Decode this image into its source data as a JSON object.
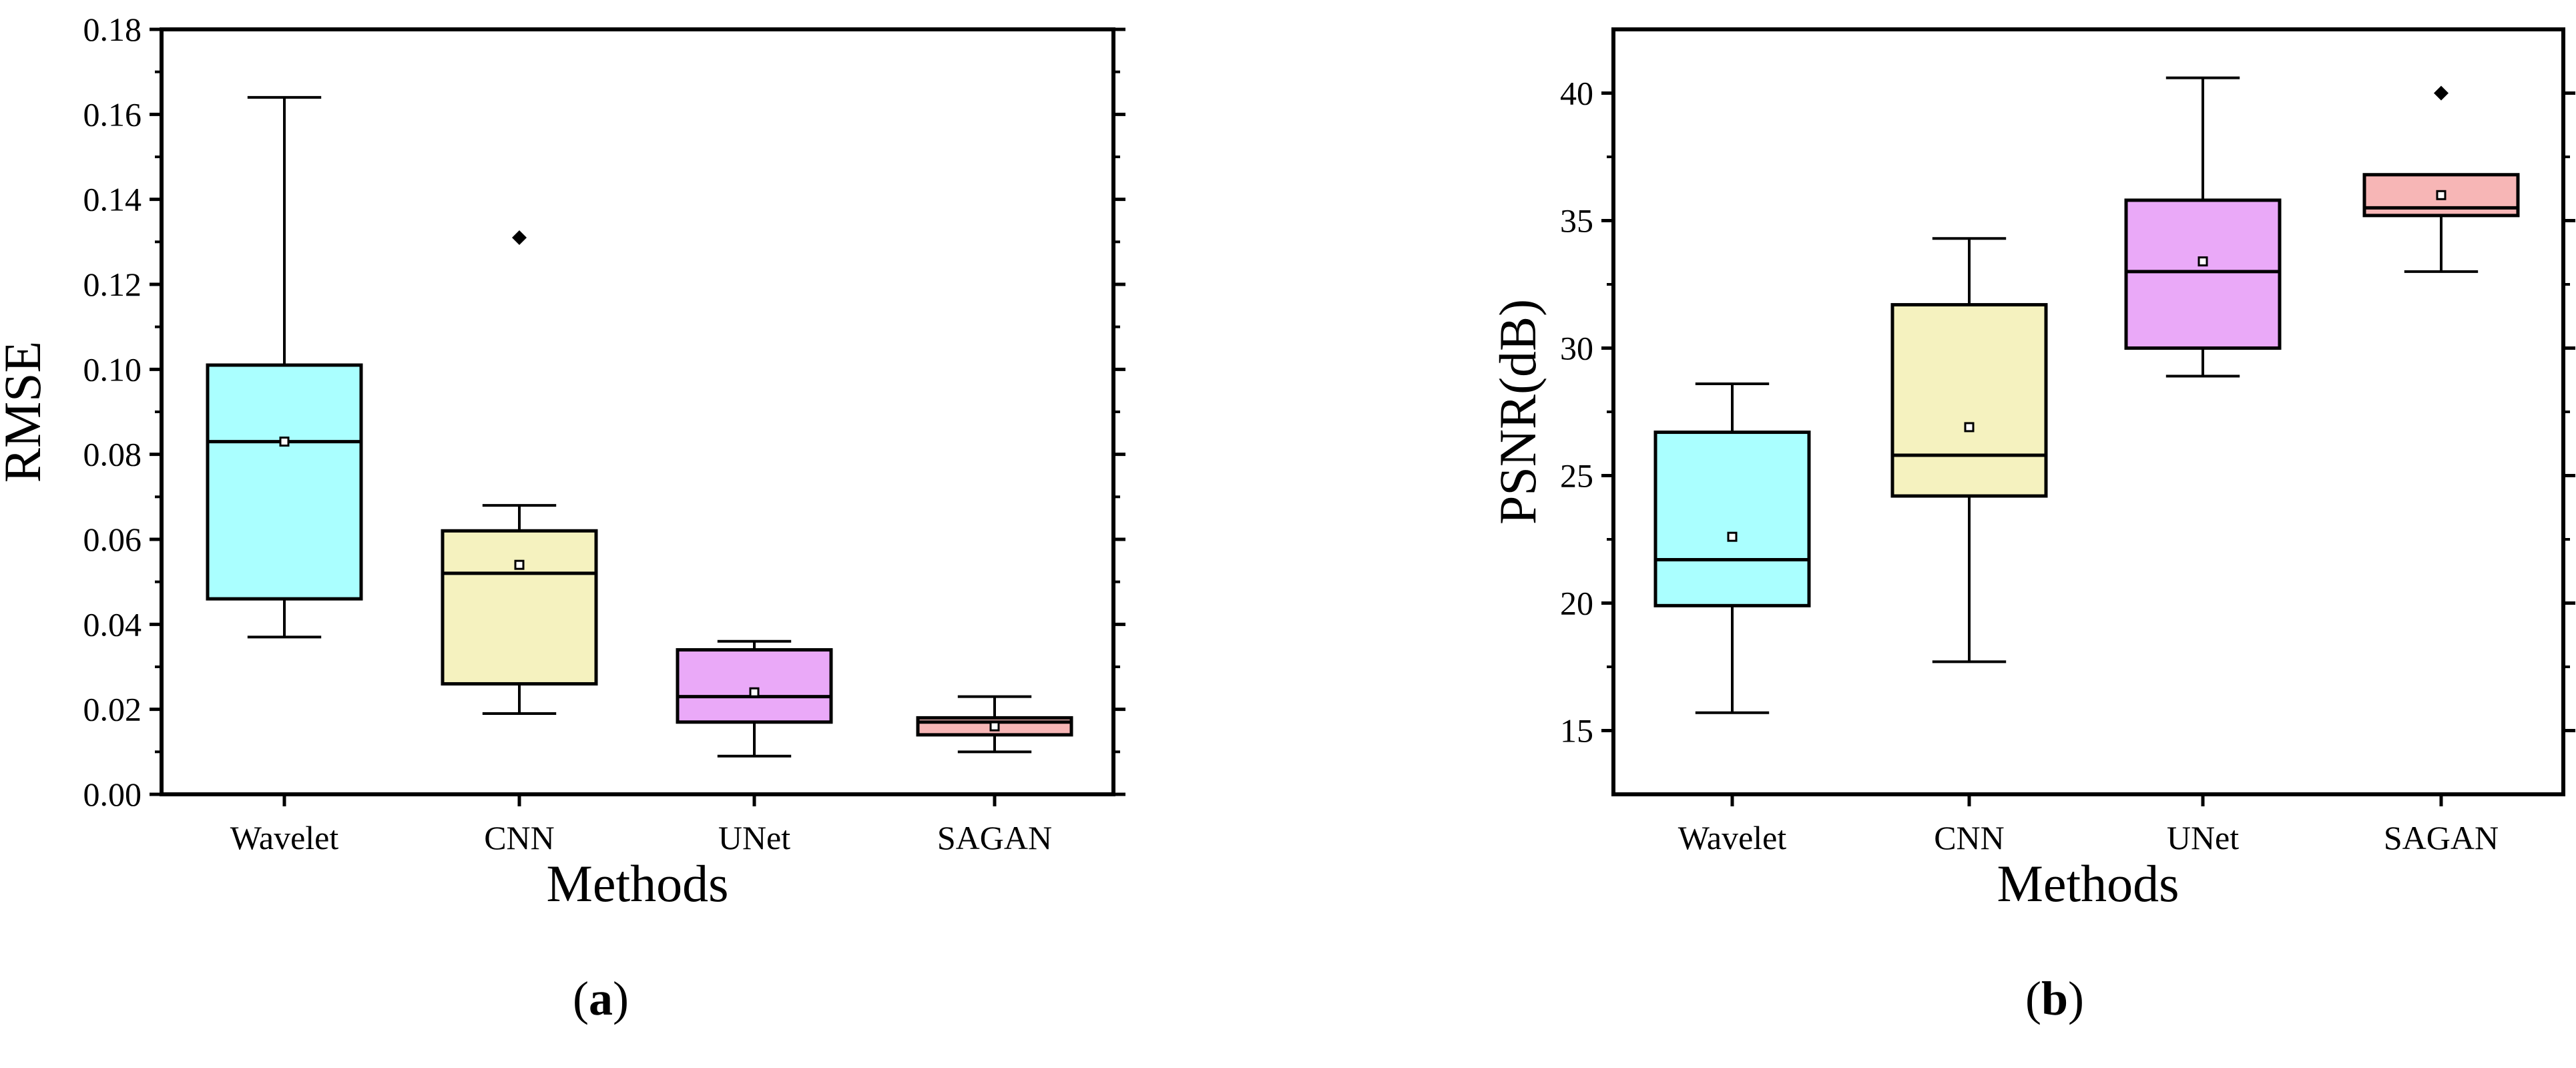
{
  "chart_data": [
    {
      "type": "box",
      "panel_label": "a",
      "xlabel": "Methods",
      "ylabel": "RMSE",
      "ylim": [
        0,
        0.18
      ],
      "yticks": [
        "0.00",
        "0.02",
        "0.04",
        "0.06",
        "0.08",
        "0.10",
        "0.12",
        "0.14",
        "0.16",
        "0.18"
      ],
      "categories": [
        "Wavelet",
        "CNN",
        "UNet",
        "SAGAN"
      ],
      "colors": [
        "#aaffff",
        "#f5f2bf",
        "#eaa9f8",
        "#f7b6b6"
      ],
      "boxes": [
        {
          "whisker_low": 0.037,
          "q1": 0.046,
          "median": 0.083,
          "q3": 0.101,
          "whisker_high": 0.164,
          "mean": 0.083,
          "outliers": []
        },
        {
          "whisker_low": 0.019,
          "q1": 0.026,
          "median": 0.052,
          "q3": 0.062,
          "whisker_high": 0.068,
          "mean": 0.054,
          "outliers": [
            0.131
          ]
        },
        {
          "whisker_low": 0.009,
          "q1": 0.017,
          "median": 0.023,
          "q3": 0.034,
          "whisker_high": 0.036,
          "mean": 0.024,
          "outliers": []
        },
        {
          "whisker_low": 0.01,
          "q1": 0.014,
          "median": 0.017,
          "q3": 0.018,
          "whisker_high": 0.023,
          "mean": 0.016,
          "outliers": []
        }
      ]
    },
    {
      "type": "box",
      "panel_label": "b",
      "xlabel": "Methods",
      "ylabel": "PSNR(dB)",
      "ylim": [
        12.5,
        42.5
      ],
      "yticks": [
        "15",
        "20",
        "25",
        "30",
        "35",
        "40"
      ],
      "categories": [
        "Wavelet",
        "CNN",
        "UNet",
        "SAGAN"
      ],
      "colors": [
        "#aaffff",
        "#f5f2bf",
        "#eaa9f8",
        "#f7b6b6"
      ],
      "boxes": [
        {
          "whisker_low": 15.7,
          "q1": 19.9,
          "median": 21.7,
          "q3": 26.7,
          "whisker_high": 28.6,
          "mean": 22.6,
          "outliers": []
        },
        {
          "whisker_low": 17.7,
          "q1": 24.2,
          "median": 25.8,
          "q3": 31.7,
          "whisker_high": 34.3,
          "mean": 26.9,
          "outliers": []
        },
        {
          "whisker_low": 28.9,
          "q1": 30.0,
          "median": 33.0,
          "q3": 35.8,
          "whisker_high": 40.6,
          "mean": 33.4,
          "outliers": []
        },
        {
          "whisker_low": 33.0,
          "q1": 35.2,
          "median": 35.5,
          "q3": 36.8,
          "whisker_high": 36.8,
          "mean": 36.0,
          "outliers": [
            40.0
          ]
        }
      ]
    }
  ]
}
